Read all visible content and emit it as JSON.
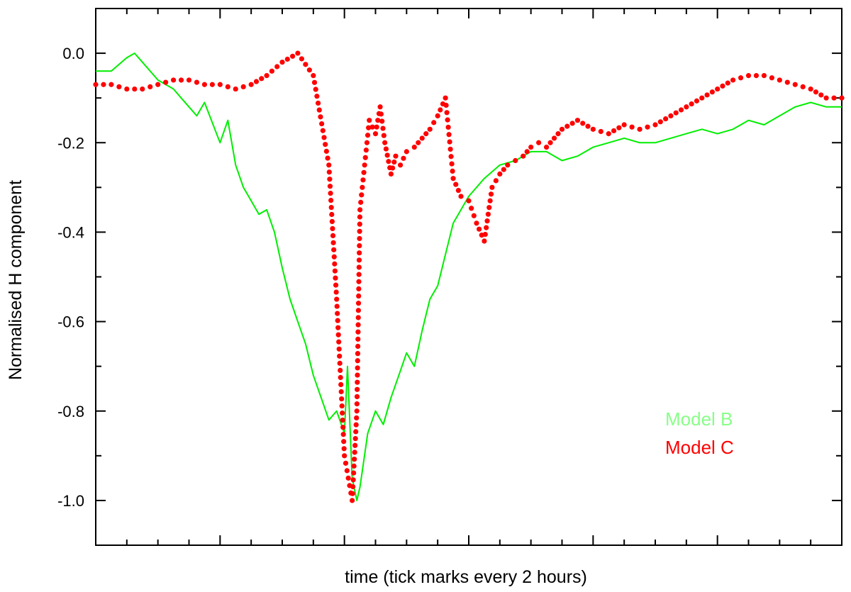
{
  "chart_data": {
    "type": "line",
    "xlabel": "time (tick marks every 2 hours)",
    "ylabel": "Normalised H component",
    "xlim": [
      0,
      48
    ],
    "ylim": [
      -1.1,
      0.1
    ],
    "x_tick_step": 2,
    "y_ticks": [
      0.0,
      -0.2,
      -0.4,
      -0.6,
      -0.8,
      -1.0
    ],
    "y_tick_labels": [
      "0.0",
      "-0.2",
      "-0.4",
      "-0.6",
      "-0.8",
      "-1.0"
    ],
    "grid": false,
    "legend_position": "bottom-right",
    "series": [
      {
        "name": "Model B",
        "color": "#00ee00",
        "legend_color": "#88ff88",
        "style": "line",
        "x": [
          0,
          1,
          2,
          2.5,
          3,
          4,
          5,
          5.5,
          6,
          6.5,
          7,
          8,
          8.5,
          9,
          9.5,
          10,
          10.5,
          11,
          11.5,
          12,
          12.5,
          13,
          13.5,
          14,
          14.5,
          15,
          15.5,
          16,
          16.2,
          16.5,
          16.8,
          17,
          17.5,
          18,
          18.5,
          19,
          19.5,
          20,
          20.5,
          21,
          21.5,
          22,
          22.5,
          23,
          23.5,
          24,
          25,
          26,
          27,
          28,
          29,
          30,
          31,
          32,
          33,
          34,
          35,
          36,
          37,
          38,
          39,
          40,
          41,
          42,
          43,
          44,
          45,
          46,
          47,
          48
        ],
        "y": [
          -0.04,
          -0.04,
          -0.01,
          0.0,
          -0.02,
          -0.06,
          -0.08,
          -0.1,
          -0.12,
          -0.14,
          -0.11,
          -0.2,
          -0.15,
          -0.25,
          -0.3,
          -0.33,
          -0.36,
          -0.35,
          -0.4,
          -0.48,
          -0.55,
          -0.6,
          -0.65,
          -0.72,
          -0.77,
          -0.82,
          -0.8,
          -0.85,
          -0.7,
          -0.95,
          -1.0,
          -0.97,
          -0.85,
          -0.8,
          -0.83,
          -0.77,
          -0.72,
          -0.67,
          -0.7,
          -0.62,
          -0.55,
          -0.52,
          -0.45,
          -0.38,
          -0.35,
          -0.32,
          -0.28,
          -0.25,
          -0.24,
          -0.22,
          -0.22,
          -0.24,
          -0.23,
          -0.21,
          -0.2,
          -0.19,
          -0.2,
          -0.2,
          -0.19,
          -0.18,
          -0.17,
          -0.18,
          -0.17,
          -0.15,
          -0.16,
          -0.14,
          -0.12,
          -0.11,
          -0.12,
          -0.12
        ]
      },
      {
        "name": "Model C",
        "color": "#ff0000",
        "legend_color": "#ff0000",
        "style": "dotted",
        "x": [
          0,
          1,
          2,
          3,
          4,
          5,
          6,
          7,
          8,
          9,
          10,
          11,
          12,
          13,
          14,
          15,
          15.5,
          16,
          16.5,
          16.8,
          17,
          17.3,
          17.6,
          18,
          18.3,
          18.6,
          19,
          19.3,
          19.6,
          20,
          20.5,
          21,
          21.5,
          22,
          22.5,
          23,
          23.5,
          24,
          24.5,
          25,
          25.5,
          26,
          26.5,
          27,
          27.5,
          28,
          28.5,
          29,
          29.5,
          30,
          31,
          32,
          33,
          34,
          35,
          36,
          37,
          38,
          39,
          40,
          41,
          42,
          43,
          44,
          45,
          46,
          47,
          48
        ],
        "y": [
          -0.07,
          -0.07,
          -0.08,
          -0.08,
          -0.07,
          -0.06,
          -0.06,
          -0.07,
          -0.07,
          -0.08,
          -0.07,
          -0.05,
          -0.02,
          0.0,
          -0.05,
          -0.25,
          -0.55,
          -0.9,
          -1.0,
          -0.8,
          -0.35,
          -0.25,
          -0.15,
          -0.18,
          -0.12,
          -0.2,
          -0.27,
          -0.23,
          -0.25,
          -0.22,
          -0.21,
          -0.19,
          -0.17,
          -0.14,
          -0.1,
          -0.28,
          -0.32,
          -0.33,
          -0.38,
          -0.42,
          -0.3,
          -0.27,
          -0.25,
          -0.24,
          -0.23,
          -0.21,
          -0.2,
          -0.21,
          -0.19,
          -0.17,
          -0.15,
          -0.17,
          -0.18,
          -0.16,
          -0.17,
          -0.16,
          -0.14,
          -0.12,
          -0.1,
          -0.08,
          -0.06,
          -0.05,
          -0.05,
          -0.06,
          -0.07,
          -0.08,
          -0.1,
          -0.1
        ]
      }
    ]
  }
}
